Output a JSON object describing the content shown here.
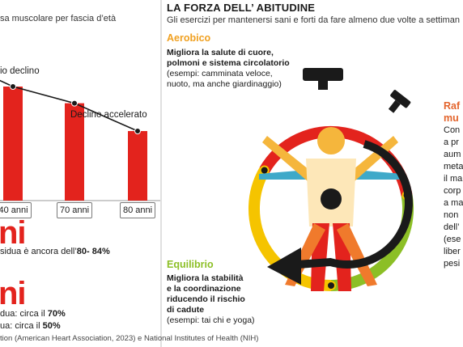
{
  "left": {
    "subtitle": "sa muscolare per fascia d’età",
    "decline_label": "io declino",
    "accel_label": "Declino accelerato",
    "x_labels": [
      "40 anni",
      "70 anni",
      "80 anni"
    ],
    "big_lines": [
      "ni",
      "ni"
    ],
    "note1": {
      "prefix": "sidua è ancora dell’",
      "value": "80- 84%"
    },
    "note2": {
      "prefix": "dua: circa il ",
      "value": "70%"
    },
    "note3": {
      "prefix": "ua: circa il ",
      "value": "50%"
    }
  },
  "chart_data": {
    "type": "bar",
    "categories": [
      "40 anni",
      "70 anni",
      "80 anni"
    ],
    "values": [
      82,
      70,
      50
    ],
    "bar_color": "#e3231d",
    "trend_line": true
  },
  "source": "tion (American Heart Association, 2023) e National Institutes of Health (NIH)",
  "right": {
    "title": "LA FORZA DELL’ ABITUDINE",
    "subtitle": "Gli esercizi per mantenersi sani e forti da fare almeno due volte a settiman",
    "aerobic": {
      "title": "Aerobico",
      "bold_lines": [
        "Migliora la salute di cuore,",
        "polmoni e sistema circolatorio"
      ],
      "plain_lines": [
        "(esempi: camminata veloce,",
        "nuoto, ma anche giardinaggio)"
      ],
      "color": "#f0a020"
    },
    "balance": {
      "title": "Equilibrio",
      "bold_lines": [
        "Migliora la stabilità",
        "e la coordinazione",
        "riducendo il rischio",
        "di cadute"
      ],
      "plain_lines": [
        "(esempi: tai chi e yoga)"
      ],
      "color": "#8cbf26"
    },
    "strength": {
      "title_lines": [
        "Raf",
        "mu"
      ],
      "body_lines": [
        "Con",
        "a pr",
        "aum",
        "meta",
        "il ma",
        "corp",
        "a ma",
        "non",
        "dell’",
        "(ese",
        "liber",
        "pesi"
      ],
      "color": "#e3642c"
    }
  },
  "colors": {
    "red": "#e3231d",
    "orange": "#f0a020",
    "green": "#8cbf26",
    "yellow": "#f5d000",
    "skin": "#fde7b8",
    "blue": "#3fa9c9",
    "dark": "#1a1a1a"
  }
}
